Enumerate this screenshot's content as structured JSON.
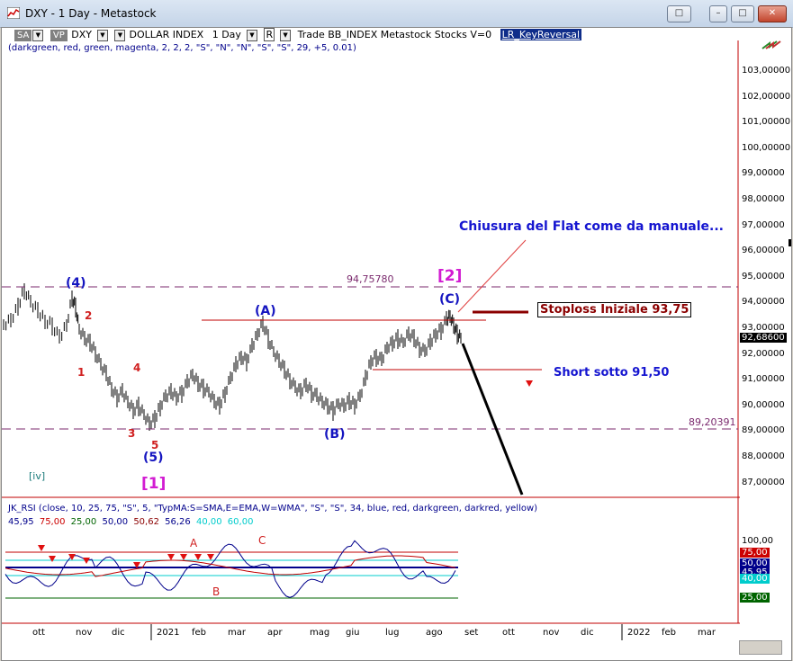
{
  "window": {
    "title": "DXY - 1 Day - Metastock",
    "buttons": [
      "restore",
      "minimize",
      "maximize",
      "close"
    ]
  },
  "toolbar": {
    "sa": "SA",
    "vp": "VP",
    "symbol": "DXY",
    "name": "DOLLAR INDEX",
    "period": "1 Day",
    "r": "R",
    "rest": "Trade  BB_INDEX  Metastock  Stocks  V=0",
    "indicator": "LR_KeyReversal"
  },
  "params_line": "(darkgreen,  red,  green,  magenta,  2,  2,  2,  \"S\",  \"N\",  \"N\",  \"S\",  \"S\",  29,  +5,  0.01)",
  "price_axis": {
    "ticks": [
      "103,00000",
      "102,00000",
      "101,00000",
      "100,00000",
      "99,00000",
      "98,00000",
      "97,00000",
      "96,00000",
      "95,00000",
      "94,00000",
      "93,00000",
      "92,00000",
      "91,00000",
      "90,00000",
      "89,00000",
      "88,00000",
      "87,00000"
    ],
    "current": "92,68600"
  },
  "annotations": {
    "title": "Chiusura del Flat come da manuale...",
    "stoploss": "Stoploss Iniziale 93,75",
    "short": "Short sotto 91,50",
    "level_high": "94,75780",
    "level_low": "89,20391",
    "wave_2": "[2]",
    "wave_1": "[1]",
    "wave_4": "(4)",
    "wave_5": "(5)",
    "wave_A": "(A)",
    "wave_B": "(B)",
    "wave_C": "(C)",
    "iv": "[iv]",
    "sub_1": "1",
    "sub_2": "2",
    "sub_3": "3",
    "sub_4": "4",
    "sub_5": "5"
  },
  "rsi": {
    "header": "JK_RSI    (close,  10,  25,  75,  \"S\",  5,  \"TypMA:S=SMA,E=EMA,W=WMA\",  \"S\",  \"S\",  34,  blue,  red,  darkgreen,  darkred,  yellow)",
    "values": [
      {
        "text": "45,95",
        "color": "#00008b"
      },
      {
        "text": "75,00",
        "color": "#cc0000"
      },
      {
        "text": "25,00",
        "color": "#006400"
      },
      {
        "text": "50,00",
        "color": "#00008b"
      },
      {
        "text": "50,62",
        "color": "#8b0000"
      },
      {
        "text": "56,26",
        "color": "#00008b"
      },
      {
        "text": "40,00",
        "color": "#00cccc"
      },
      {
        "text": "60,00",
        "color": "#00cccc"
      }
    ],
    "axis_100": "100,00",
    "axis_75": "75,00",
    "axis_50": "50,00",
    "axis_4595": "45,95",
    "axis_40": "40,00",
    "axis_25": "25,00",
    "label_A": "A",
    "label_B": "B",
    "label_C": "C"
  },
  "time_axis": [
    "ott",
    "nov",
    "dic",
    "2021",
    "feb",
    "mar",
    "apr",
    "mag",
    "giu",
    "lug",
    "ago",
    "set",
    "ott",
    "nov",
    "dic",
    "2022",
    "feb",
    "mar"
  ]
}
